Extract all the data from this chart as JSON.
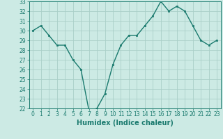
{
  "x": [
    0,
    1,
    2,
    3,
    4,
    5,
    6,
    7,
    8,
    9,
    10,
    11,
    12,
    13,
    14,
    15,
    16,
    17,
    18,
    19,
    20,
    21,
    22,
    23
  ],
  "y": [
    30.0,
    30.5,
    29.5,
    28.5,
    28.5,
    27.0,
    26.0,
    21.8,
    22.0,
    23.5,
    26.5,
    28.5,
    29.5,
    29.5,
    30.5,
    31.5,
    33.0,
    32.0,
    32.5,
    32.0,
    30.5,
    29.0,
    28.5,
    29.0
  ],
  "xlabel": "Humidex (Indice chaleur)",
  "ylim": [
    22,
    33
  ],
  "xlim": [
    -0.5,
    23.5
  ],
  "yticks": [
    22,
    23,
    24,
    25,
    26,
    27,
    28,
    29,
    30,
    31,
    32,
    33
  ],
  "xticks": [
    0,
    1,
    2,
    3,
    4,
    5,
    6,
    7,
    8,
    9,
    10,
    11,
    12,
    13,
    14,
    15,
    16,
    17,
    18,
    19,
    20,
    21,
    22,
    23
  ],
  "line_color": "#1a7a6e",
  "marker_color": "#1a7a6e",
  "bg_color": "#cceae4",
  "grid_color": "#aacfc8",
  "axis_color": "#1a7a6e",
  "tick_color": "#1a7a6e",
  "label_color": "#1a7a6e",
  "tick_fontsize": 5.5,
  "xlabel_fontsize": 7.0
}
